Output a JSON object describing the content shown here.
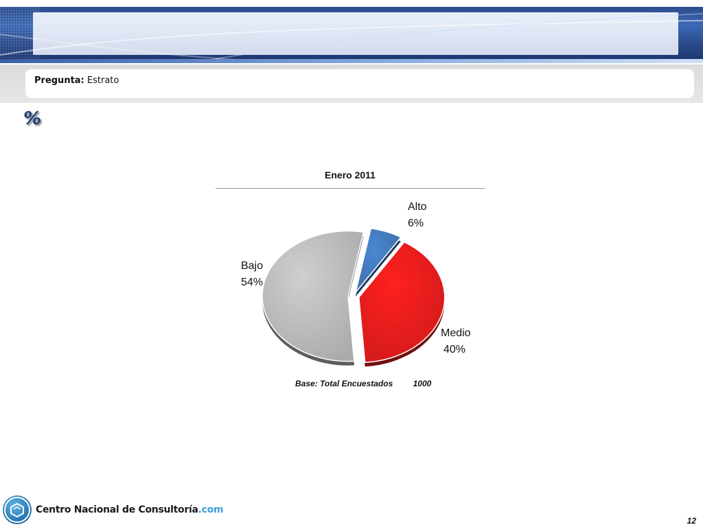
{
  "question": {
    "label": "Pregunta:",
    "value": "Estrato"
  },
  "unit_symbol": "%",
  "chart_data": {
    "type": "pie",
    "title": "Enero 2011",
    "slices": [
      {
        "name": "Alto",
        "value": 6,
        "label": "6%",
        "color": "#4a86d0",
        "exploded": true
      },
      {
        "name": "Medio",
        "value": 40,
        "label": "40%",
        "color": "#ff2020",
        "exploded": true
      },
      {
        "name": "Bajo",
        "value": 54,
        "label": "54%",
        "color": "#cfcfcf",
        "exploded": true
      }
    ]
  },
  "base_note": {
    "label": "Base: Total Encuestados",
    "value": "1000"
  },
  "footer": {
    "brand_name": "Centro Nacional de Consultoría",
    "brand_suffix": ".com",
    "page_number": "12"
  },
  "colors": {
    "banner": "#2c4d8e",
    "accent": "#3aa0dc"
  }
}
